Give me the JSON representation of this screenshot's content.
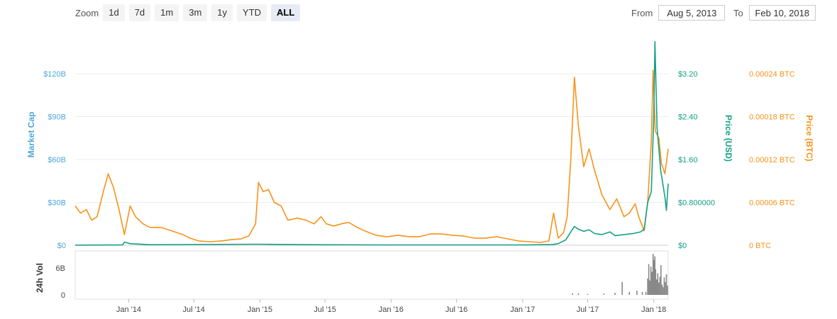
{
  "zoom": {
    "label": "Zoom",
    "buttons": [
      "1d",
      "7d",
      "1m",
      "3m",
      "1y",
      "YTD",
      "ALL"
    ],
    "active": "ALL"
  },
  "range": {
    "from_label": "From",
    "from_value": "Aug 5, 2013",
    "to_label": "To",
    "to_value": "Feb 10, 2018"
  },
  "colors": {
    "market_cap": "#4fa8d8",
    "price_usd": "#16a085",
    "price_btc": "#f7931a",
    "volume": "#888888"
  },
  "chart_data": {
    "type": "line",
    "x_start": "2013-08-05",
    "x_end": "2018-02-10",
    "x_ticks": [
      {
        "date": "2014-01-01",
        "label": "Jan '14"
      },
      {
        "date": "2014-07-01",
        "label": "Jul '14"
      },
      {
        "date": "2015-01-01",
        "label": "Jan '15"
      },
      {
        "date": "2015-07-01",
        "label": "Jul '15"
      },
      {
        "date": "2016-01-01",
        "label": "Jan '16"
      },
      {
        "date": "2016-07-01",
        "label": "Jul '16"
      },
      {
        "date": "2017-01-01",
        "label": "Jan '17"
      },
      {
        "date": "2017-07-01",
        "label": "Jul '17"
      },
      {
        "date": "2018-01-01",
        "label": "Jan '18"
      }
    ],
    "axes": {
      "market_cap": {
        "label": "Market Cap",
        "range": [
          0,
          120
        ],
        "ticks": [
          "$0",
          "$30B",
          "$60B",
          "$90B",
          "$120B"
        ]
      },
      "price_usd": {
        "label": "Price (USD)",
        "range": [
          0,
          3.2
        ],
        "ticks": [
          "$0",
          "$0.800000",
          "$1.60",
          "$2.40",
          "$3.20"
        ]
      },
      "price_btc": {
        "label": "Price (BTC)",
        "range": [
          0,
          0.00024
        ],
        "ticks": [
          "0 BTC",
          "0.00006 BTC",
          "0.00012 BTC",
          "0.00018 BTC",
          "0.00024 BTC"
        ]
      },
      "volume": {
        "label": "24h Vol",
        "range": [
          0,
          8
        ],
        "ticks": [
          "0",
          "6B"
        ]
      }
    },
    "series": [
      {
        "name": "Price (BTC)",
        "axis": "price_btc",
        "points": [
          [
            "2013-08-05",
            5.5e-05
          ],
          [
            "2013-08-20",
            4.5e-05
          ],
          [
            "2013-09-05",
            5e-05
          ],
          [
            "2013-09-20",
            3.5e-05
          ],
          [
            "2013-10-05",
            4e-05
          ],
          [
            "2013-10-25",
            8e-05
          ],
          [
            "2013-11-05",
            0.0001
          ],
          [
            "2013-11-20",
            8e-05
          ],
          [
            "2013-12-05",
            5e-05
          ],
          [
            "2013-12-20",
            1.5e-05
          ],
          [
            "2014-01-05",
            5.5e-05
          ],
          [
            "2014-01-20",
            4e-05
          ],
          [
            "2014-02-10",
            3e-05
          ],
          [
            "2014-03-01",
            2.5e-05
          ],
          [
            "2014-04-01",
            2.5e-05
          ],
          [
            "2014-05-01",
            2e-05
          ],
          [
            "2014-06-01",
            1.5e-05
          ],
          [
            "2014-06-20",
            1e-05
          ],
          [
            "2014-07-15",
            6e-06
          ],
          [
            "2014-08-15",
            5e-06
          ],
          [
            "2014-09-15",
            6e-06
          ],
          [
            "2014-10-15",
            8e-06
          ],
          [
            "2014-11-10",
            9e-06
          ],
          [
            "2014-12-01",
            1.3e-05
          ],
          [
            "2014-12-20",
            3e-05
          ],
          [
            "2014-12-28",
            8.8e-05
          ],
          [
            "2015-01-10",
            7.5e-05
          ],
          [
            "2015-01-25",
            7.8e-05
          ],
          [
            "2015-02-10",
            6e-05
          ],
          [
            "2015-03-01",
            5.5e-05
          ],
          [
            "2015-03-20",
            3.5e-05
          ],
          [
            "2015-04-15",
            3.8e-05
          ],
          [
            "2015-05-10",
            3.5e-05
          ],
          [
            "2015-06-01",
            3e-05
          ],
          [
            "2015-06-20",
            4e-05
          ],
          [
            "2015-07-05",
            3e-05
          ],
          [
            "2015-07-25",
            2.7e-05
          ],
          [
            "2015-08-15",
            3e-05
          ],
          [
            "2015-09-05",
            3.2e-05
          ],
          [
            "2015-09-25",
            2.6e-05
          ],
          [
            "2015-10-20",
            2e-05
          ],
          [
            "2015-11-20",
            1.4e-05
          ],
          [
            "2015-12-20",
            1.2e-05
          ],
          [
            "2016-01-20",
            1.4e-05
          ],
          [
            "2016-02-20",
            1.2e-05
          ],
          [
            "2016-03-20",
            1.2e-05
          ],
          [
            "2016-04-20",
            1.6e-05
          ],
          [
            "2016-05-20",
            1.6e-05
          ],
          [
            "2016-06-20",
            1.4e-05
          ],
          [
            "2016-07-20",
            1.3e-05
          ],
          [
            "2016-08-20",
            1e-05
          ],
          [
            "2016-09-20",
            1e-05
          ],
          [
            "2016-10-20",
            1.2e-05
          ],
          [
            "2016-11-20",
            9e-06
          ],
          [
            "2016-12-20",
            6e-06
          ],
          [
            "2017-01-20",
            5e-06
          ],
          [
            "2017-02-20",
            4e-06
          ],
          [
            "2017-03-15",
            6e-06
          ],
          [
            "2017-03-28",
            4.5e-05
          ],
          [
            "2017-04-10",
            1e-05
          ],
          [
            "2017-04-25",
            1.8e-05
          ],
          [
            "2017-05-05",
            4e-05
          ],
          [
            "2017-05-15",
            0.00012
          ],
          [
            "2017-05-25",
            0.000235
          ],
          [
            "2017-06-05",
            0.000168
          ],
          [
            "2017-06-20",
            0.00011
          ],
          [
            "2017-07-05",
            0.000135
          ],
          [
            "2017-07-20",
            0.000105
          ],
          [
            "2017-08-10",
            7e-05
          ],
          [
            "2017-09-01",
            5e-05
          ],
          [
            "2017-09-20",
            6.5e-05
          ],
          [
            "2017-10-10",
            4e-05
          ],
          [
            "2017-10-25",
            4.5e-05
          ],
          [
            "2017-11-10",
            5.8e-05
          ],
          [
            "2017-11-20",
            4e-05
          ],
          [
            "2017-12-05",
            2e-05
          ],
          [
            "2017-12-15",
            6e-05
          ],
          [
            "2017-12-25",
            0.000145
          ],
          [
            "2017-12-30",
            0.000245
          ],
          [
            "2018-01-05",
            0.00016
          ],
          [
            "2018-01-15",
            0.00015
          ],
          [
            "2018-01-22",
            0.000115
          ],
          [
            "2018-02-01",
            0.0001
          ],
          [
            "2018-02-10",
            0.000135
          ]
        ]
      },
      {
        "name": "Price (USD)",
        "axis": "price_usd",
        "points": [
          [
            "2013-08-05",
            0.002
          ],
          [
            "2013-12-15",
            0.008
          ],
          [
            "2013-12-20",
            0.06
          ],
          [
            "2014-01-05",
            0.03
          ],
          [
            "2014-03-01",
            0.01
          ],
          [
            "2014-12-28",
            0.02
          ],
          [
            "2015-06-01",
            0.01
          ],
          [
            "2016-01-01",
            0.006
          ],
          [
            "2016-07-01",
            0.007
          ],
          [
            "2017-01-01",
            0.006
          ],
          [
            "2017-03-25",
            0.015
          ],
          [
            "2017-04-10",
            0.03
          ],
          [
            "2017-05-01",
            0.1
          ],
          [
            "2017-05-15",
            0.25
          ],
          [
            "2017-05-25",
            0.35
          ],
          [
            "2017-06-05",
            0.3
          ],
          [
            "2017-06-20",
            0.26
          ],
          [
            "2017-07-05",
            0.29
          ],
          [
            "2017-07-20",
            0.22
          ],
          [
            "2017-08-10",
            0.2
          ],
          [
            "2017-09-01",
            0.25
          ],
          [
            "2017-09-15",
            0.18
          ],
          [
            "2017-10-10",
            0.2
          ],
          [
            "2017-11-05",
            0.22
          ],
          [
            "2017-11-25",
            0.25
          ],
          [
            "2017-12-05",
            0.3
          ],
          [
            "2017-12-15",
            0.8
          ],
          [
            "2017-12-25",
            1.0
          ],
          [
            "2018-01-01",
            2.4
          ],
          [
            "2018-01-04",
            3.8
          ],
          [
            "2018-01-10",
            2.2
          ],
          [
            "2018-01-20",
            1.4
          ],
          [
            "2018-02-01",
            0.9
          ],
          [
            "2018-02-05",
            0.65
          ],
          [
            "2018-02-10",
            1.15
          ]
        ]
      }
    ],
    "volume_bars": [
      [
        "2017-05-20",
        0.3
      ],
      [
        "2017-06-05",
        0.3
      ],
      [
        "2017-07-01",
        0.2
      ],
      [
        "2017-08-15",
        0.25
      ],
      [
        "2017-09-15",
        0.4
      ],
      [
        "2017-10-05",
        2.5
      ],
      [
        "2017-10-25",
        0.6
      ],
      [
        "2017-11-15",
        0.8
      ],
      [
        "2017-11-30",
        0.6
      ],
      [
        "2017-12-10",
        0.6
      ],
      [
        "2017-12-15",
        3.2
      ],
      [
        "2017-12-18",
        6.0
      ],
      [
        "2017-12-21",
        2.8
      ],
      [
        "2017-12-24",
        5.5
      ],
      [
        "2017-12-27",
        4.5
      ],
      [
        "2017-12-30",
        8.0
      ],
      [
        "2018-01-02",
        6.8
      ],
      [
        "2018-01-04",
        7.5
      ],
      [
        "2018-01-06",
        5.0
      ],
      [
        "2018-01-09",
        3.0
      ],
      [
        "2018-01-12",
        4.2
      ],
      [
        "2018-01-15",
        2.4
      ],
      [
        "2018-01-18",
        3.5
      ],
      [
        "2018-01-21",
        5.8
      ],
      [
        "2018-01-24",
        2.0
      ],
      [
        "2018-01-27",
        1.5
      ],
      [
        "2018-01-30",
        3.4
      ],
      [
        "2018-02-02",
        2.5
      ],
      [
        "2018-02-05",
        4.0
      ],
      [
        "2018-02-08",
        1.8
      ]
    ]
  }
}
